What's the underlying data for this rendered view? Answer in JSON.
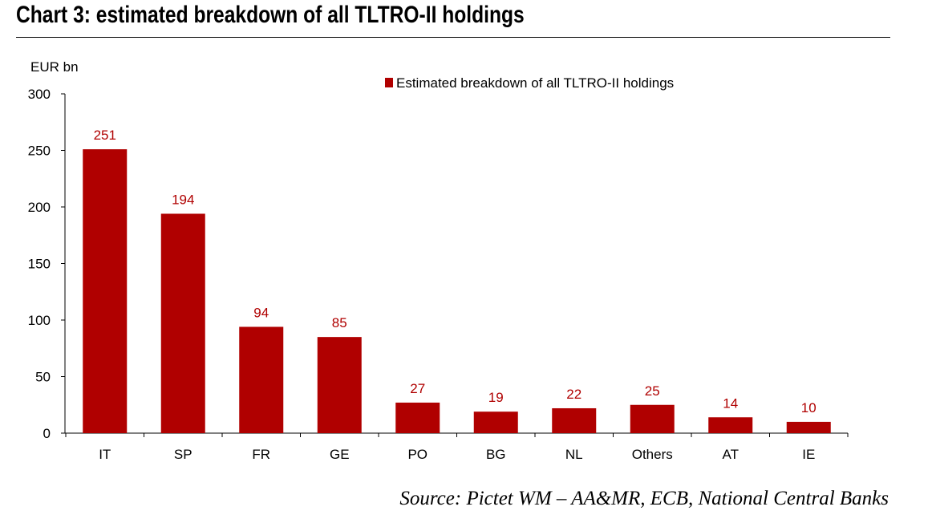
{
  "title": "Chart 3: estimated breakdown of all TLTRO-II holdings",
  "source": "Source: Pictet WM – AA&MR, ECB, National Central Banks",
  "colors": {
    "bar": "#b00000",
    "label": "#b00000",
    "axis": "#000000"
  },
  "chart_data": {
    "type": "bar",
    "ylabel": "EUR bn",
    "ylim": [
      0,
      300
    ],
    "yticks": [
      0,
      50,
      100,
      150,
      200,
      250,
      300
    ],
    "categories": [
      "IT",
      "SP",
      "FR",
      "GE",
      "PO",
      "BG",
      "NL",
      "Others",
      "AT",
      "IE"
    ],
    "series": [
      {
        "name": "Estimated breakdown of all TLTRO-II holdings",
        "values": [
          251,
          194,
          94,
          85,
          27,
          19,
          22,
          25,
          14,
          10
        ]
      }
    ],
    "legend_position": "top",
    "grid": false
  }
}
